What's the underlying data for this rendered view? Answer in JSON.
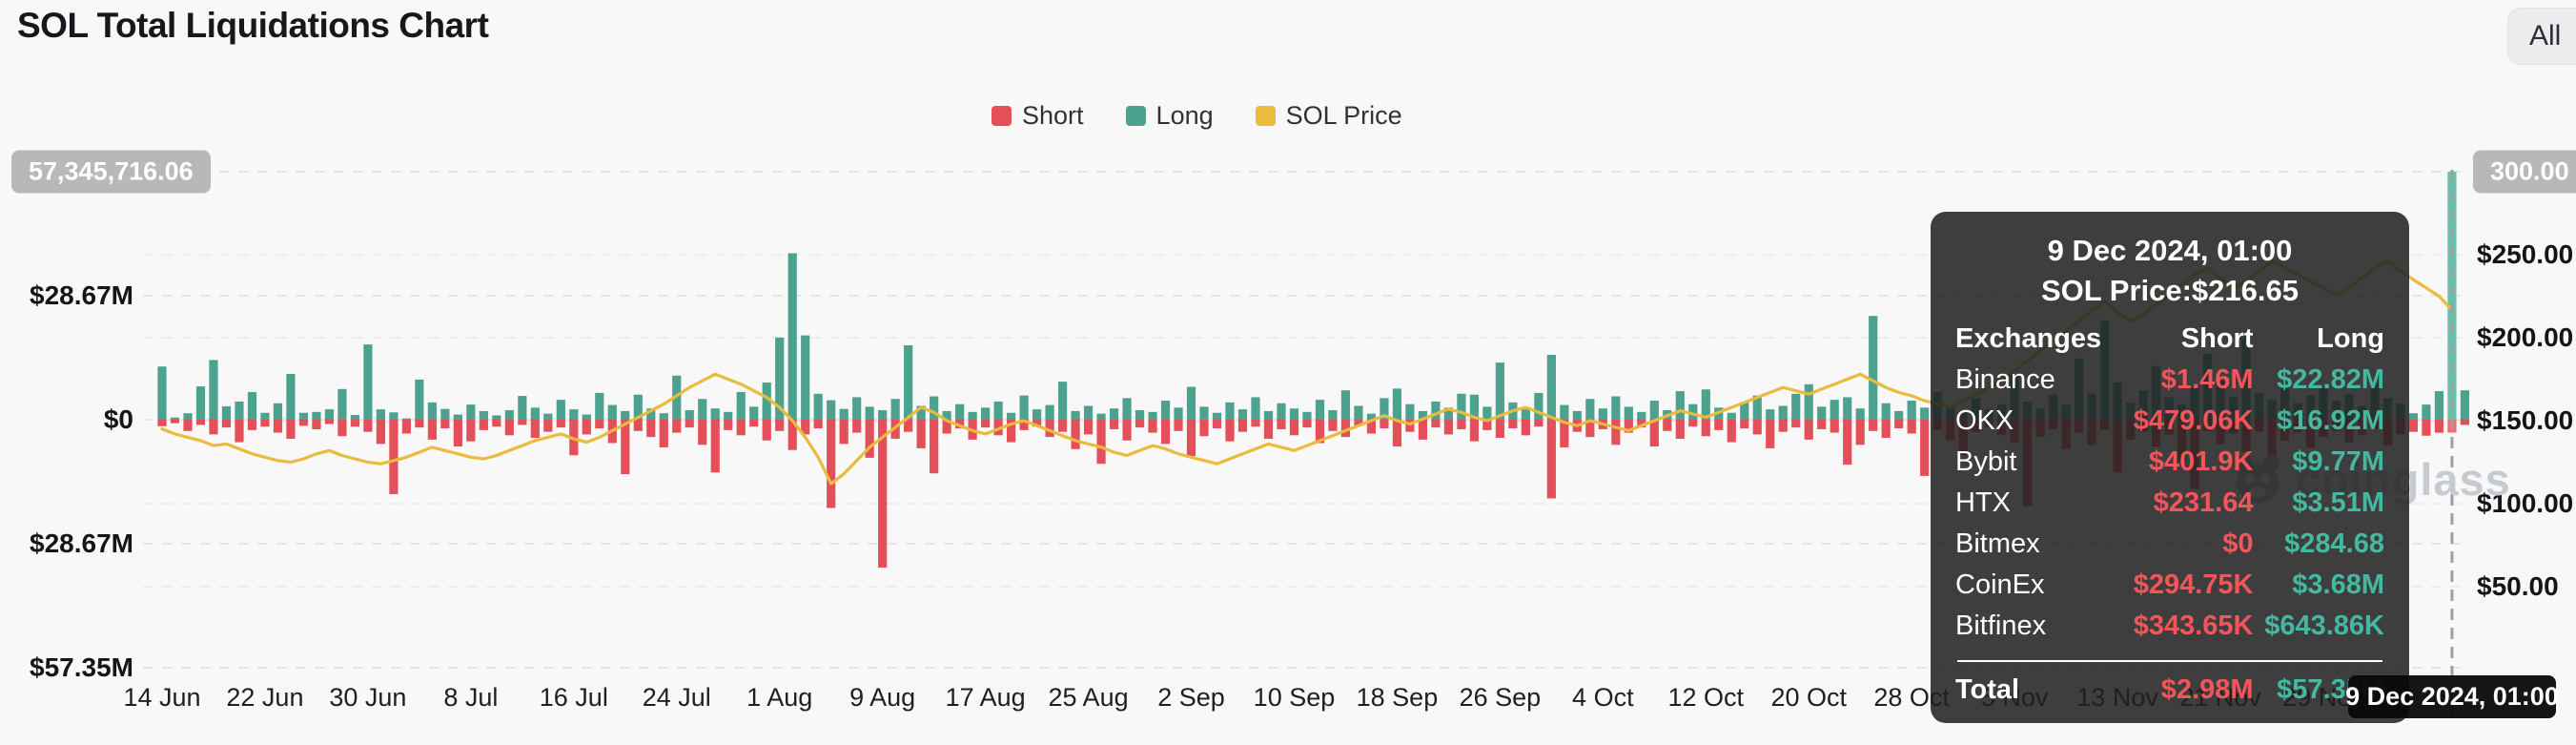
{
  "header": {
    "title": "SOL Total Liquidations Chart",
    "range_button": {
      "label": "All",
      "icon": "chevron-down-icon"
    }
  },
  "legend": {
    "items": [
      {
        "label": "Short",
        "color": "#E4505A"
      },
      {
        "label": "Long",
        "color": "#4CA28F"
      },
      {
        "label": "SOL Price",
        "color": "#EBBB3F"
      }
    ]
  },
  "axes": {
    "left": {
      "badge": "57,345,716.06",
      "ticks": [
        {
          "label": "$28.67M",
          "value": 28.67
        },
        {
          "label": "$0",
          "value": 0
        },
        {
          "label": "$28.67M",
          "value": -28.67
        },
        {
          "label": "$57.35M",
          "value": -57.35
        }
      ]
    },
    "right": {
      "badge": "300.00",
      "ticks": [
        {
          "label": "$250.00",
          "price": 250
        },
        {
          "label": "$200.00",
          "price": 200
        },
        {
          "label": "$150.00",
          "price": 150
        },
        {
          "label": "$100.00",
          "price": 100
        },
        {
          "label": "$50.00",
          "price": 50
        }
      ]
    },
    "x": {
      "ticks": [
        "14 Jun",
        "22 Jun",
        "30 Jun",
        "8 Jul",
        "16 Jul",
        "24 Jul",
        "1 Aug",
        "9 Aug",
        "17 Aug",
        "25 Aug",
        "2 Sep",
        "10 Sep",
        "18 Sep",
        "26 Sep",
        "4 Oct",
        "12 Oct",
        "20 Oct",
        "28 Oct",
        "5 Nov",
        "13 Nov",
        "21 Nov",
        "29 Nov"
      ]
    }
  },
  "tooltip": {
    "title": "9 Dec 2024, 01:00",
    "price_line": "SOL Price:$216.65",
    "columns": [
      "Exchanges",
      "Short",
      "Long"
    ],
    "rows": [
      {
        "exchange": "Binance",
        "short": "$1.46M",
        "long": "$22.82M"
      },
      {
        "exchange": "OKX",
        "short": "$479.06K",
        "long": "$16.92M"
      },
      {
        "exchange": "Bybit",
        "short": "$401.9K",
        "long": "$9.77M"
      },
      {
        "exchange": "HTX",
        "short": "$231.64",
        "long": "$3.51M"
      },
      {
        "exchange": "Bitmex",
        "short": "$0",
        "long": "$284.68"
      },
      {
        "exchange": "CoinEx",
        "short": "$294.75K",
        "long": "$3.68M"
      },
      {
        "exchange": "Bitfinex",
        "short": "$343.65K",
        "long": "$643.86K"
      }
    ],
    "total": {
      "exchange": "Total",
      "short": "$2.98M",
      "long": "$57.35M"
    },
    "short_color": "#F2555A",
    "long_color": "#45B8A0"
  },
  "crosshair": {
    "date_label": "9 Dec 2024, 01:00",
    "hover_index": 178
  },
  "watermark": {
    "text": "coinglass",
    "icon": "coinglass-panda-icon"
  },
  "chart_data": {
    "type": "bar",
    "title": "SOL Total Liquidations Chart",
    "x_start": "14 Jun 2024",
    "x_end": "10 Dec 2024",
    "x_interval_days": 1,
    "left_axis": {
      "unit": "USD liquidations",
      "top": 57345716.06,
      "ticks_M": [
        57.35,
        28.67,
        0,
        -28.67,
        -57.35
      ]
    },
    "right_axis": {
      "unit": "SOL price USD",
      "range": [
        50,
        300
      ]
    },
    "legend_position": "top-center",
    "grid": true,
    "hover_point": {
      "date": "9 Dec 2024, 01:00",
      "sol_price": 216.65,
      "short_M": 2.98,
      "long_M": 57.35
    },
    "series": [
      {
        "name": "Long",
        "type": "bar",
        "direction": "up",
        "unit": "$M",
        "color": "#4CA28F",
        "values": [
          12.3,
          0.5,
          1.5,
          7.7,
          13.8,
          3.1,
          4.2,
          6.4,
          1.6,
          3.8,
          10.6,
          1.6,
          1.8,
          2.4,
          7.1,
          1.1,
          17.4,
          2.4,
          1.7,
          0.3,
          9.3,
          4.0,
          2.5,
          1.2,
          3.5,
          2.0,
          1.0,
          2.2,
          5.5,
          2.8,
          1.4,
          4.6,
          2.4,
          1.2,
          6.2,
          3.4,
          2.0,
          5.8,
          2.6,
          1.5,
          10.2,
          2.2,
          4.8,
          2.6,
          1.8,
          6.4,
          3.0,
          8.6,
          19.0,
          38.5,
          19.5,
          6.0,
          4.5,
          2.5,
          5.2,
          3.0,
          2.2,
          4.8,
          17.2,
          3.2,
          5.4,
          2.0,
          3.6,
          1.8,
          2.8,
          4.2,
          1.6,
          5.6,
          2.4,
          3.4,
          8.8,
          2.0,
          3.2,
          1.4,
          2.6,
          5.0,
          2.2,
          1.8,
          4.4,
          2.8,
          7.6,
          3.0,
          1.6,
          4.0,
          2.4,
          5.2,
          2.0,
          3.8,
          2.6,
          1.8,
          4.6,
          2.2,
          6.8,
          3.2,
          1.4,
          5.0,
          7.2,
          3.6,
          2.0,
          4.2,
          2.8,
          6.0,
          5.8,
          3.0,
          13.2,
          4.0,
          2.4,
          6.2,
          15.0,
          3.4,
          2.0,
          4.8,
          2.6,
          5.4,
          3.0,
          1.8,
          4.4,
          2.2,
          6.6,
          3.6,
          7.0,
          2.8,
          1.6,
          4.0,
          5.6,
          2.4,
          3.2,
          6.0,
          8.2,
          3.0,
          4.6,
          5.2,
          2.6,
          24.0,
          3.8,
          2.0,
          4.4,
          2.8,
          6.4,
          3.2,
          1.8,
          5.0,
          2.4,
          3.6,
          10.4,
          4.2,
          2.6,
          5.8,
          3.4,
          14.2,
          6.0,
          23.0,
          8.6,
          4.0,
          6.8,
          12.4,
          5.2,
          3.6,
          7.4,
          15.2,
          9.0,
          5.4,
          20.0,
          6.2,
          4.6,
          8.0,
          3.8,
          5.6,
          7.2,
          4.4,
          6.0,
          3.2,
          8.4,
          5.0,
          3.7,
          1.5,
          3.5,
          6.6,
          57.35,
          6.8
        ]
      },
      {
        "name": "Short",
        "type": "bar",
        "direction": "down",
        "unit": "$M",
        "color": "#E4505A",
        "values": [
          1.5,
          0.8,
          2.6,
          1.2,
          3.4,
          1.8,
          5.2,
          2.4,
          1.6,
          3.0,
          4.4,
          1.4,
          2.2,
          1.0,
          3.8,
          1.6,
          2.8,
          5.6,
          17.2,
          3.2,
          1.8,
          4.6,
          2.0,
          6.2,
          5.0,
          2.4,
          1.6,
          3.6,
          1.2,
          4.2,
          2.8,
          1.8,
          8.2,
          3.4,
          2.0,
          5.4,
          12.6,
          2.6,
          4.0,
          6.4,
          3.0,
          1.8,
          5.8,
          12.2,
          2.4,
          3.6,
          1.6,
          4.8,
          2.6,
          7.0,
          3.4,
          2.0,
          20.4,
          5.6,
          3.0,
          8.8,
          34.2,
          4.4,
          2.8,
          6.6,
          12.4,
          3.2,
          2.0,
          4.6,
          1.8,
          3.6,
          5.2,
          2.4,
          1.6,
          4.0,
          2.8,
          6.8,
          3.4,
          10.2,
          2.2,
          4.8,
          1.8,
          3.0,
          5.6,
          2.6,
          8.4,
          3.8,
          2.0,
          5.0,
          2.8,
          1.6,
          4.4,
          2.2,
          3.6,
          1.8,
          5.4,
          2.6,
          4.0,
          1.4,
          3.2,
          2.0,
          6.2,
          2.8,
          4.6,
          1.8,
          3.4,
          2.2,
          5.0,
          2.4,
          4.2,
          2.0,
          3.6,
          1.6,
          18.2,
          6.4,
          2.8,
          4.0,
          2.2,
          5.8,
          3.0,
          1.8,
          6.2,
          2.6,
          4.4,
          1.6,
          3.8,
          2.4,
          5.2,
          2.0,
          3.4,
          6.6,
          2.8,
          1.8,
          4.6,
          2.2,
          3.0,
          10.4,
          5.8,
          2.6,
          4.2,
          2.0,
          3.2,
          13.0,
          2.4,
          4.8,
          8.2,
          2.8,
          1.8,
          3.6,
          5.4,
          20.0,
          4.0,
          2.2,
          6.8,
          3.0,
          5.8,
          2.4,
          12.2,
          4.6,
          2.8,
          6.2,
          3.4,
          9.8,
          16.0,
          2.6,
          5.6,
          3.2,
          7.4,
          2.8,
          9.2,
          4.8,
          3.0,
          6.4,
          4.0,
          2.6,
          5.2,
          3.6,
          2.2,
          6.0,
          3.4,
          2.8,
          3.7,
          3.0,
          2.98,
          1.2
        ]
      },
      {
        "name": "SOL Price",
        "type": "line",
        "unit": "$",
        "color": "#EBBB3F",
        "values": [
          145,
          142,
          140,
          138,
          135,
          136,
          133,
          130,
          128,
          126,
          125,
          127,
          130,
          132,
          129,
          127,
          125,
          124,
          126,
          128,
          131,
          134,
          132,
          130,
          128,
          127,
          129,
          132,
          135,
          138,
          140,
          142,
          139,
          137,
          140,
          144,
          148,
          152,
          156,
          160,
          165,
          170,
          174,
          178,
          175,
          172,
          168,
          164,
          158,
          150,
          140,
          128,
          112,
          118,
          126,
          134,
          140,
          146,
          152,
          158,
          155,
          150,
          147,
          144,
          142,
          145,
          148,
          150,
          147,
          144,
          141,
          138,
          136,
          134,
          131,
          129,
          132,
          135,
          133,
          130,
          128,
          126,
          124,
          127,
          130,
          133,
          136,
          134,
          132,
          135,
          138,
          141,
          144,
          147,
          150,
          153,
          150,
          148,
          151,
          154,
          157,
          155,
          152,
          150,
          153,
          156,
          158,
          155,
          152,
          149,
          147,
          150,
          148,
          146,
          144,
          147,
          150,
          153,
          156,
          154,
          152,
          155,
          158,
          161,
          164,
          167,
          170,
          168,
          166,
          169,
          172,
          175,
          178,
          174,
          170,
          167,
          165,
          162,
          160,
          158,
          162,
          166,
          170,
          175,
          180,
          186,
          192,
          198,
          204,
          210,
          216,
          222,
          215,
          210,
          214,
          220,
          226,
          232,
          238,
          242,
          236,
          230,
          234,
          240,
          246,
          242,
          238,
          234,
          230,
          226,
          230,
          236,
          242,
          246,
          240,
          235,
          230,
          225,
          216.65,
          217
        ]
      }
    ]
  }
}
